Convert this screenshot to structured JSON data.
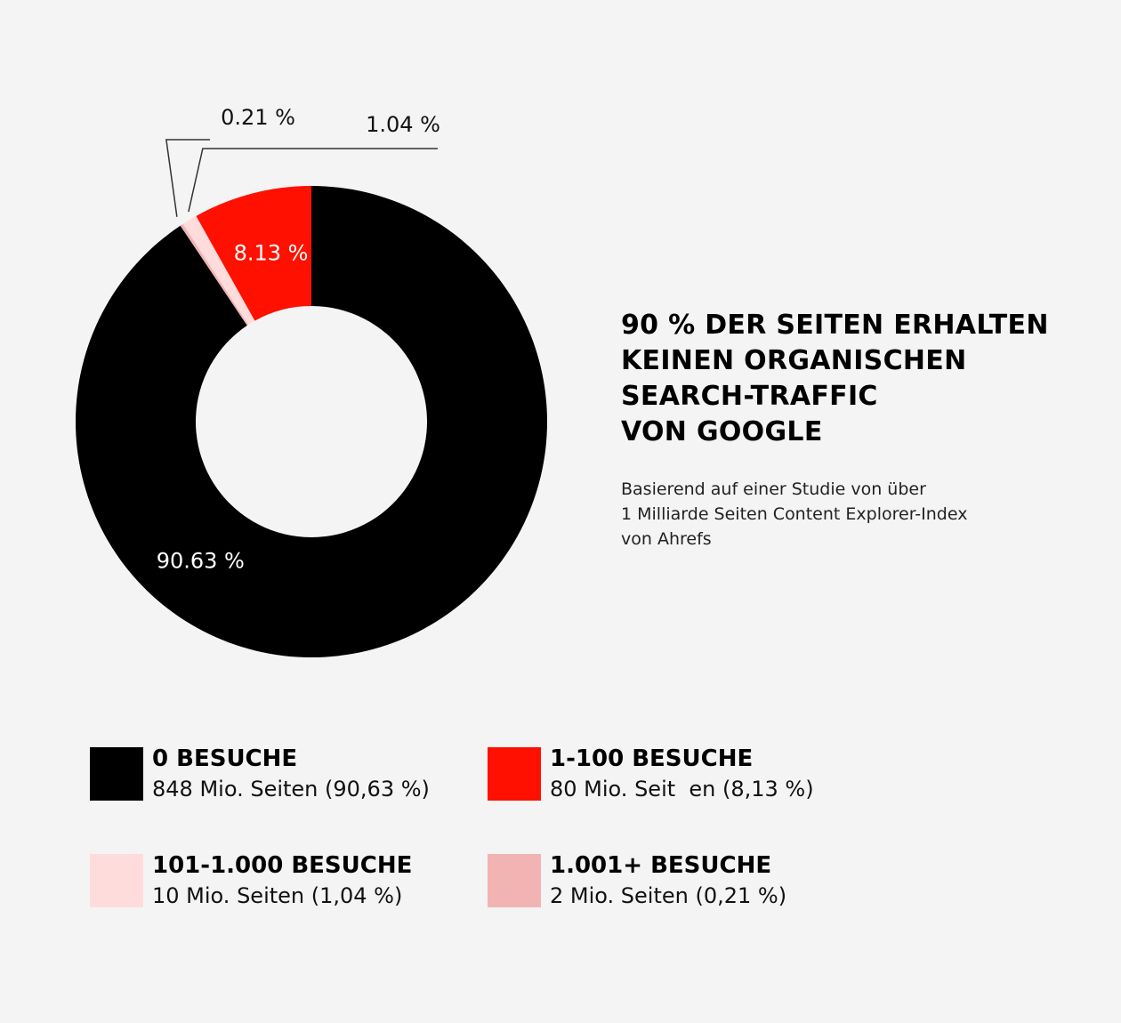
{
  "chart_data": {
    "type": "pie",
    "variant": "donut",
    "title": "90 % DER SEITEN ERHALTEN KEINEN ORGANISCHEN SEARCH-TRAFFIC VON GOOGLE",
    "title_lines": [
      "90 % DER SEITEN ERHALTEN",
      "KEINEN ORGANISCHEN",
      "SEARCH-TRAFFIC",
      "VON GOOGLE"
    ],
    "subtitle_lines": [
      "Basierend auf einer Studie von über",
      "1 Milliarde Seiten Content Explorer-Index",
      "von Ahrefs"
    ],
    "slices": [
      {
        "label": "0 BESUCHE",
        "description": "848 Mio. Seiten (90,63 %)",
        "value": 90.63,
        "display": "90.63 %",
        "color": "#000000",
        "label_color": "#ffffff"
      },
      {
        "label": "1.001+ BESUCHE",
        "description": "2 Mio. Seiten (0,21 %)",
        "value": 0.21,
        "display": "0.21 %",
        "color": "#f2b3b3",
        "label_color": "#111111"
      },
      {
        "label": "101-1.000 BESUCHE",
        "description": "10 Mio. Seiten (1,04 %)",
        "value": 1.04,
        "display": "1.04 %",
        "color": "#ffdcdc",
        "label_color": "#111111"
      },
      {
        "label": "1-100 BESUCHE",
        "description": "80 Mio. Seit  en (8,13 %)",
        "value": 8.13,
        "display": "8.13 %",
        "color": "#ff1000",
        "label_color": "#ffffff"
      }
    ],
    "legend_placement": "bottom"
  }
}
